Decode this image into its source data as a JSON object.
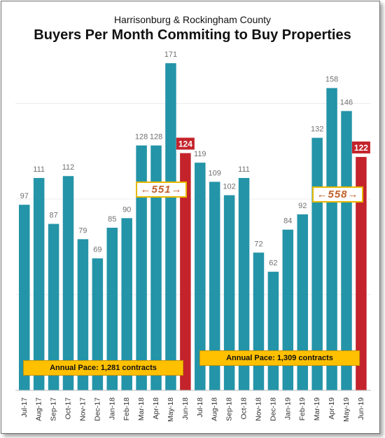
{
  "header": {
    "subtitle": "Harrisonburg & Rockingham County",
    "title": "Buyers Per Month Commiting to Buy Properties"
  },
  "colors": {
    "bar": "#2494a8",
    "highlight": "#c4232b",
    "pace": "#ffc000"
  },
  "chart_data": {
    "type": "bar",
    "title": "Buyers Per Month Commiting to Buy Properties",
    "subtitle": "Harrisonburg & Rockingham County",
    "categories": [
      "Jul-17",
      "Aug-17",
      "Sep-17",
      "Oct-17",
      "Nov-17",
      "Dec-17",
      "Jan-18",
      "Feb-18",
      "Mar-18",
      "Apr-18",
      "May-18",
      "Jun-18",
      "Jul-18",
      "Aug-18",
      "Sep-18",
      "Oct-18",
      "Nov-18",
      "Dec-18",
      "Jan-19",
      "Feb-19",
      "Mar-19",
      "Apr-19",
      "May-19",
      "Jun-19"
    ],
    "values": [
      97,
      111,
      87,
      112,
      79,
      69,
      85,
      90,
      128,
      128,
      171,
      124,
      119,
      109,
      102,
      111,
      72,
      62,
      84,
      92,
      132,
      158,
      146,
      122
    ],
    "highlighted": [
      "Jun-18",
      "Jun-19"
    ],
    "ylim": [
      0,
      180
    ],
    "grid": true,
    "annotations": [
      {
        "text": "Annual Pace: 1,281 contracts",
        "span": [
          "Jul-17",
          "Jun-18"
        ]
      },
      {
        "text": "Annual Pace: 1,309 contracts",
        "span": [
          "Jul-18",
          "Jun-19"
        ]
      },
      {
        "text": "←551→",
        "span": [
          "Mar-18",
          "Jun-18"
        ]
      },
      {
        "text": "←558→",
        "span": [
          "Mar-19",
          "Jun-19"
        ]
      }
    ]
  },
  "pace_boxes": [
    {
      "label": "Annual Pace: 1,281 contracts"
    },
    {
      "label": "Annual Pace: 1,309 contracts"
    }
  ],
  "quarter_totals": [
    {
      "label": "←551→"
    },
    {
      "label": "←558→"
    }
  ]
}
